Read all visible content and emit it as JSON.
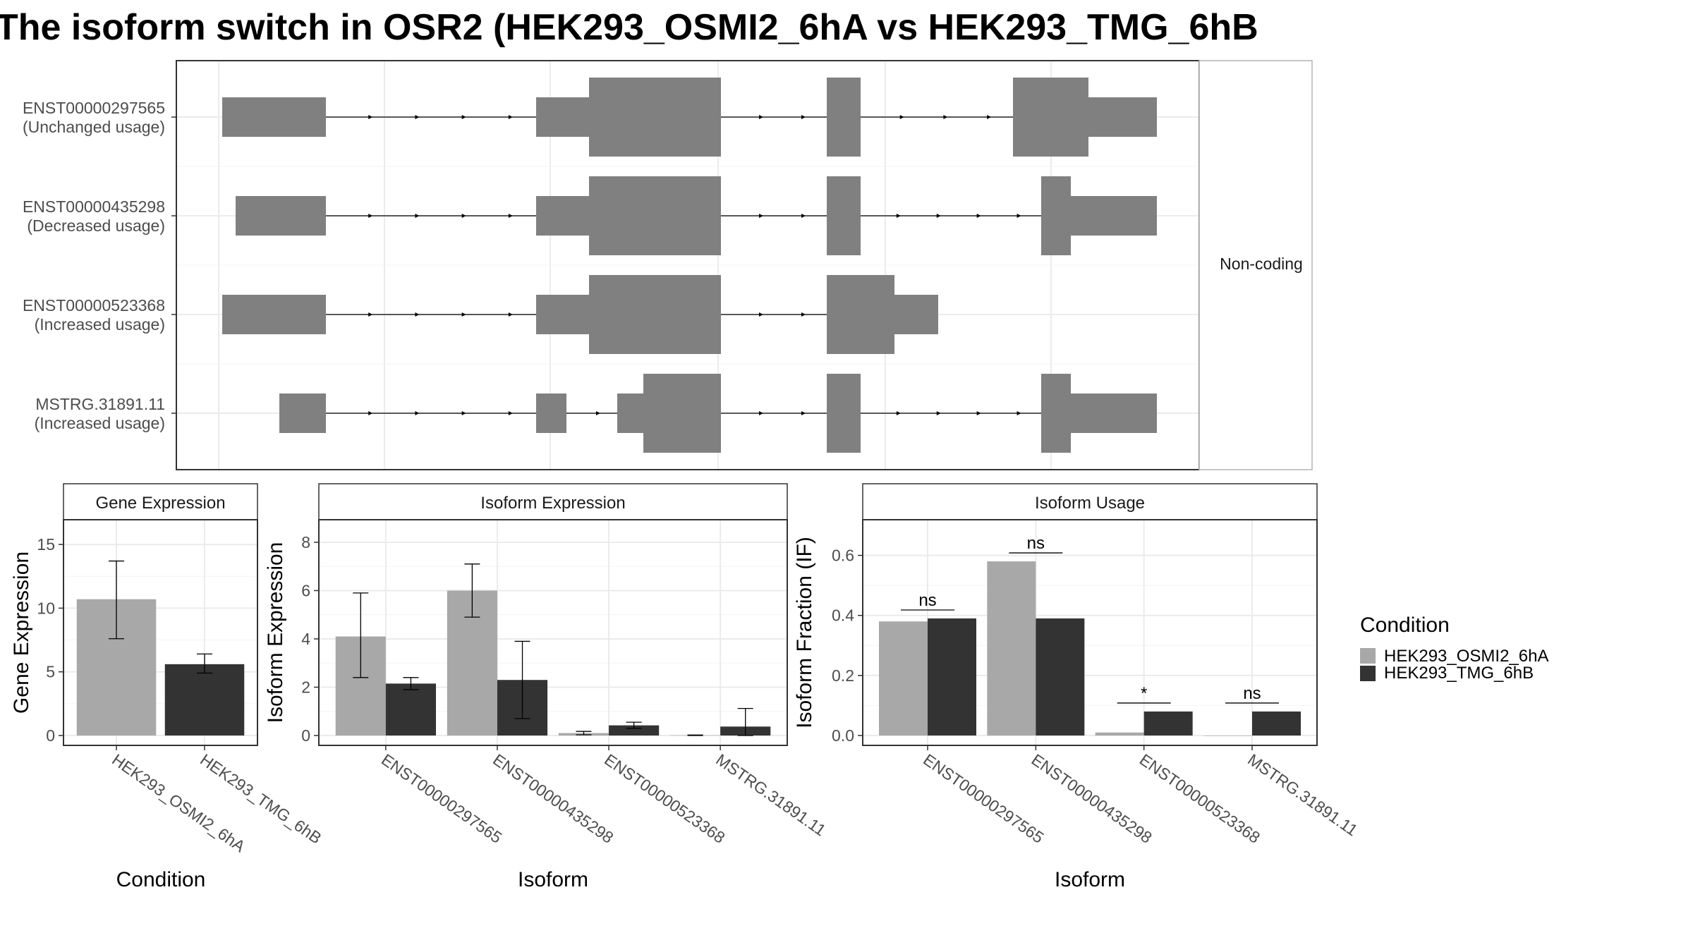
{
  "title": "The isoform switch in OSR2 (HEK293_OSMI2_6hA vs HEK293_TMG_6hB",
  "colors": {
    "condition_a": "#a8a8a8",
    "condition_b": "#333333",
    "exon": "#808080",
    "grid": "#ebebeb",
    "panel_border": "#333333",
    "strip_border": "#333333",
    "text": "#4d4d4d"
  },
  "structure_panel": {
    "strip_label": "Non-coding",
    "transcripts": [
      {
        "id": "ENST00000297565",
        "usage": "(Unchanged usage)"
      },
      {
        "id": "ENST00000435298",
        "usage": "(Decreased usage)"
      },
      {
        "id": "ENST00000523368",
        "usage": "(Increased usage)"
      },
      {
        "id": "MSTRG.31891.11",
        "usage": "(Increased usage)"
      }
    ]
  },
  "legend": {
    "title": "Condition",
    "entries": [
      "HEK293_OSMI2_6hA",
      "HEK293_TMG_6hB"
    ]
  },
  "chart_data": [
    {
      "type": "bar",
      "strip": "Gene Expression",
      "xlabel": "Condition",
      "ylabel": "Gene Expression",
      "ylim": [
        0,
        16.5
      ],
      "yticks": [
        0,
        5,
        10,
        15
      ],
      "categories": [
        "HEK293_OSMI2_6hA",
        "HEK293_TMG_6hB"
      ],
      "values": [
        10.7,
        5.6
      ],
      "error_low": [
        7.6,
        4.9
      ],
      "error_high": [
        13.7,
        6.4
      ]
    },
    {
      "type": "bar",
      "strip": "Isoform Expression",
      "xlabel": "Isoform",
      "ylabel": "Isoform Expression",
      "ylim": [
        0,
        8.7
      ],
      "yticks": [
        0,
        2,
        4,
        6,
        8
      ],
      "categories": [
        "ENST00000297565",
        "ENST00000435298",
        "ENST00000523368",
        "MSTRG.31891.11"
      ],
      "series": [
        {
          "name": "HEK293_OSMI2_6hA",
          "values": [
            4.1,
            6.0,
            0.1,
            0.01
          ],
          "error_low": [
            2.4,
            4.9,
            0.03,
            0.0
          ],
          "error_high": [
            5.9,
            7.1,
            0.17,
            0.02
          ]
        },
        {
          "name": "HEK293_TMG_6hB",
          "values": [
            2.15,
            2.3,
            0.42,
            0.37
          ],
          "error_low": [
            1.9,
            0.7,
            0.3,
            0.0
          ],
          "error_high": [
            2.4,
            3.9,
            0.55,
            1.12
          ]
        }
      ]
    },
    {
      "type": "bar",
      "strip": "Isoform Usage",
      "xlabel": "Isoform",
      "ylabel": "Isoform Fraction (IF)",
      "ylim": [
        0,
        0.7
      ],
      "yticks": [
        "0.0",
        "0.2",
        "0.4",
        "0.6"
      ],
      "categories": [
        "ENST00000297565",
        "ENST00000435298",
        "ENST00000523368",
        "MSTRG.31891.11"
      ],
      "series": [
        {
          "name": "HEK293_OSMI2_6hA",
          "values": [
            0.38,
            0.58,
            0.01,
            0.0
          ]
        },
        {
          "name": "HEK293_TMG_6hB",
          "values": [
            0.39,
            0.39,
            0.08,
            0.08
          ]
        }
      ],
      "significance": [
        "ns",
        "ns",
        "*",
        "ns"
      ]
    }
  ]
}
